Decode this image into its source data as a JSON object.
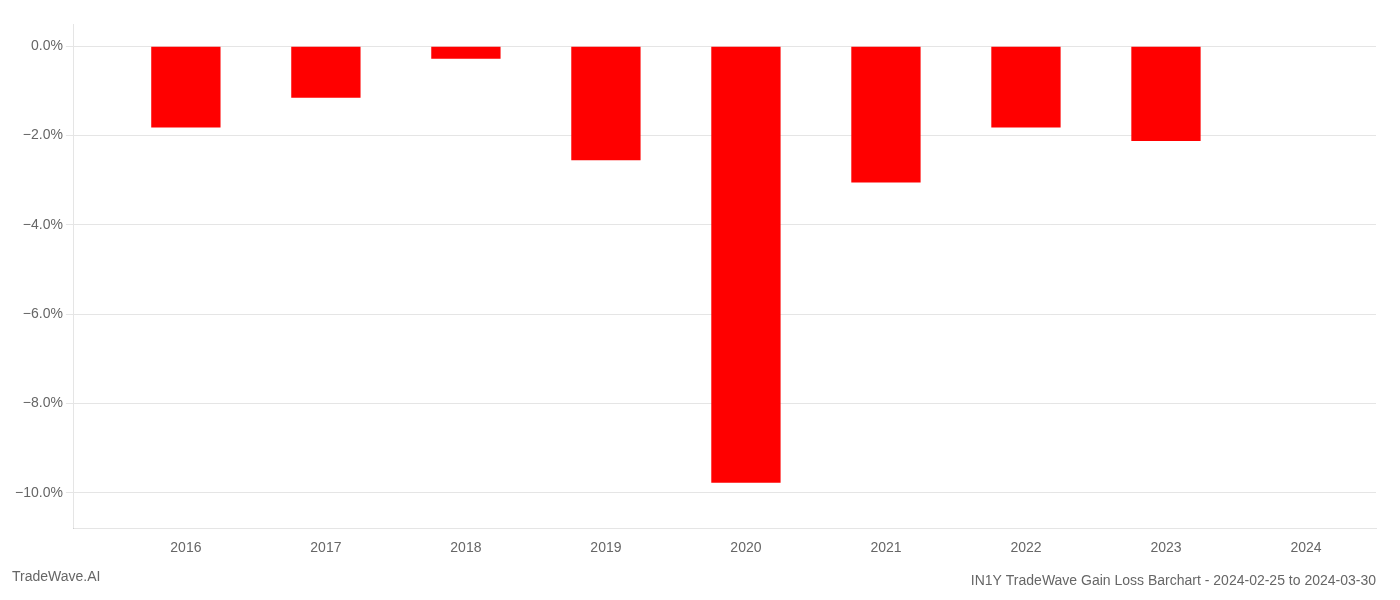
{
  "chart_data": {
    "type": "bar",
    "title": "IN1Y TradeWave Gain Loss Barchart - 2024-02-25 to 2024-03-30",
    "annotations": [
      "TradeWave.AI"
    ],
    "x": [
      2016,
      2017,
      2018,
      2019,
      2020,
      2021,
      2022,
      2023
    ],
    "values": [
      -1.82,
      -1.15,
      -0.28,
      -2.55,
      -9.78,
      -3.05,
      -1.82,
      -2.12
    ],
    "color": "#ff0000",
    "xlim": [
      2015.2,
      2024.5
    ],
    "xticks": [
      2016,
      2017,
      2018,
      2019,
      2020,
      2021,
      2022,
      2023,
      2024
    ],
    "ylim": [
      -10.8,
      0.5
    ],
    "yticks": [
      {
        "value": 0.0,
        "label": "0.0%"
      },
      {
        "value": -2.0,
        "label": "−2.0%"
      },
      {
        "value": -4.0,
        "label": "−4.0%"
      },
      {
        "value": -6.0,
        "label": "−6.0%"
      },
      {
        "value": -8.0,
        "label": "−8.0%"
      },
      {
        "value": -10.0,
        "label": "−10.0%"
      }
    ],
    "grid": true
  }
}
